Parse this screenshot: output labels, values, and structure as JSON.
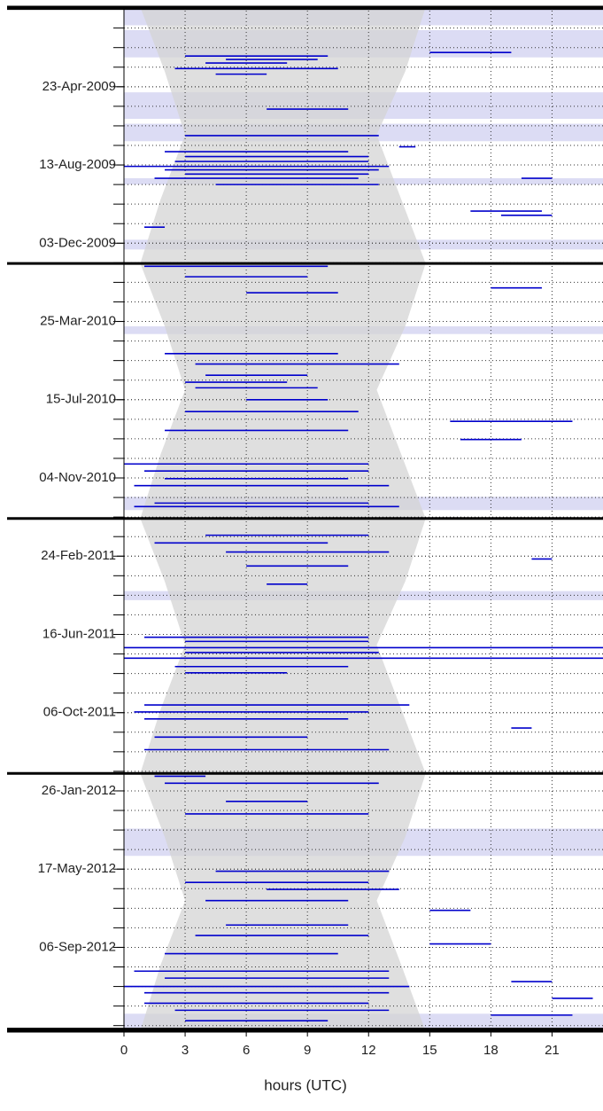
{
  "chart_data": {
    "type": "activity",
    "xlabel": "hours (UTC)",
    "xlim": [
      0,
      23.5
    ],
    "xticks": [
      0,
      3,
      6,
      9,
      12,
      15,
      18,
      21
    ],
    "ylim": [
      "30-Dec-2008",
      "04-Jan-2013"
    ],
    "yticks": [
      "23-Apr-2009",
      "13-Aug-2009",
      "03-Dec-2009",
      "25-Mar-2010",
      "15-Jul-2010",
      "04-Nov-2010",
      "24-Feb-2011",
      "16-Jun-2011",
      "06-Oct-2011",
      "26-Jan-2012",
      "17-May-2012",
      "06-Sep-2012"
    ],
    "grid": true,
    "color": "#0000cc",
    "shade_color": "#d4d4d4",
    "band_color": "#dcdcf4",
    "shading": {
      "dates": [
        "30-Dec-2008",
        "01-Apr-2009",
        "01-Jul-2009",
        "01-Oct-2009",
        "01-Jan-2010",
        "01-Apr-2010",
        "01-Jul-2010",
        "01-Oct-2010",
        "01-Jan-2011",
        "01-Apr-2011",
        "01-Jul-2011",
        "01-Oct-2011",
        "01-Jan-2012",
        "01-Apr-2012",
        "01-Jul-2012",
        "01-Oct-2012",
        "04-Jan-2013"
      ],
      "start": [
        0.8,
        2.0,
        3.0,
        1.8,
        0.8,
        2.0,
        3.0,
        1.8,
        0.8,
        2.0,
        3.0,
        1.8,
        0.8,
        2.0,
        3.0,
        1.8,
        0.8
      ],
      "end": [
        14.8,
        13.8,
        12.4,
        13.6,
        14.8,
        13.8,
        12.4,
        13.6,
        14.8,
        13.8,
        12.4,
        13.6,
        14.8,
        13.8,
        12.4,
        13.6,
        14.8
      ]
    },
    "bands": [
      [
        "30-Dec-2008",
        "25-Jan-2009"
      ],
      [
        "01-Feb-2009",
        "12-Mar-2009"
      ],
      [
        "01-May-2009",
        "08-Jun-2009"
      ],
      [
        "15-Jun-2009",
        "10-Jul-2009"
      ],
      [
        "01-Sep-2009",
        "10-Sep-2009"
      ],
      [
        "28-Nov-2009",
        "12-Dec-2009"
      ],
      [
        "01-Apr-2010",
        "12-Apr-2010"
      ],
      [
        "01-Dec-2010",
        "20-Dec-2010"
      ],
      [
        "15-Apr-2011",
        "28-Apr-2011"
      ],
      [
        "20-Mar-2012",
        "28-Apr-2012"
      ],
      [
        "10-Dec-2012",
        "04-Jan-2013"
      ]
    ],
    "segments": [
      [
        "10-Mar-2009",
        3,
        10
      ],
      [
        "15-Mar-2009",
        5,
        9.5
      ],
      [
        "20-Mar-2009",
        4,
        8
      ],
      [
        "28-Mar-2009",
        2.5,
        10.5
      ],
      [
        "05-Apr-2009",
        4.5,
        7
      ],
      [
        "25-May-2009",
        7,
        11
      ],
      [
        "02-Jul-2009",
        3,
        12.5
      ],
      [
        "25-Jul-2009",
        2,
        11
      ],
      [
        "01-Aug-2009",
        3,
        12
      ],
      [
        "08-Aug-2009",
        2.5,
        12
      ],
      [
        "15-Aug-2009",
        0,
        13
      ],
      [
        "20-Aug-2009",
        2,
        12.5
      ],
      [
        "26-Aug-2009",
        3,
        12
      ],
      [
        "01-Sep-2009",
        1.5,
        11.5
      ],
      [
        "10-Sep-2009",
        4.5,
        12.5
      ],
      [
        "18-Jul-2009",
        13.5,
        14.3
      ],
      [
        "05-Mar-2009",
        15,
        19
      ],
      [
        "01-Sep-2009",
        19.5,
        21
      ],
      [
        "18-Oct-2009",
        17,
        20.5
      ],
      [
        "24-Oct-2009",
        18.5,
        21
      ],
      [
        "10-Nov-2009",
        1,
        2
      ],
      [
        "05-Jan-2010",
        1,
        10
      ],
      [
        "20-Jan-2010",
        3,
        9
      ],
      [
        "12-Feb-2010",
        6,
        10.5
      ],
      [
        "05-Feb-2010",
        18,
        20.5
      ],
      [
        "10-May-2010",
        2,
        10.5
      ],
      [
        "25-May-2010",
        3.5,
        13.5
      ],
      [
        "10-Jun-2010",
        4,
        9
      ],
      [
        "20-Jun-2010",
        3,
        8
      ],
      [
        "28-Jun-2010",
        3.5,
        9.5
      ],
      [
        "15-Jul-2010",
        6,
        10
      ],
      [
        "01-Aug-2010",
        3,
        11.5
      ],
      [
        "15-Aug-2010",
        16,
        22
      ],
      [
        "28-Aug-2010",
        2,
        11
      ],
      [
        "10-Sep-2010",
        16.5,
        19.5
      ],
      [
        "15-Oct-2010",
        0,
        12
      ],
      [
        "25-Oct-2010",
        1,
        12
      ],
      [
        "05-Nov-2010",
        2,
        11
      ],
      [
        "15-Nov-2010",
        0.5,
        13
      ],
      [
        "10-Dec-2010",
        1.5,
        12
      ],
      [
        "15-Dec-2010",
        0.5,
        13.5
      ],
      [
        "25-Jan-2011",
        4,
        12
      ],
      [
        "05-Feb-2011",
        1.5,
        10
      ],
      [
        "18-Feb-2011",
        5,
        13
      ],
      [
        "28-Feb-2011",
        20,
        21
      ],
      [
        "10-Mar-2011",
        6,
        11
      ],
      [
        "05-Apr-2011",
        7,
        9
      ],
      [
        "20-Jun-2011",
        1,
        12
      ],
      [
        "26-Jun-2011",
        3,
        12
      ],
      [
        "05-Jul-2011",
        0,
        23.5
      ],
      [
        "12-Jul-2011",
        3,
        12.5
      ],
      [
        "20-Jul-2011",
        0,
        23.5
      ],
      [
        "01-Aug-2011",
        2.5,
        11
      ],
      [
        "10-Aug-2011",
        3,
        8
      ],
      [
        "25-Sep-2011",
        1,
        14
      ],
      [
        "05-Oct-2011",
        0.5,
        12
      ],
      [
        "15-Oct-2011",
        1,
        11
      ],
      [
        "28-Oct-2011",
        19,
        20
      ],
      [
        "10-Nov-2011",
        1.5,
        9
      ],
      [
        "28-Nov-2011",
        1,
        13
      ],
      [
        "05-Jan-2012",
        1.5,
        4
      ],
      [
        "15-Jan-2012",
        2,
        12.5
      ],
      [
        "10-Feb-2012",
        5,
        9
      ],
      [
        "28-Feb-2012",
        3,
        12
      ],
      [
        "20-May-2012",
        4.5,
        13
      ],
      [
        "05-Jun-2012",
        3,
        12
      ],
      [
        "15-Jun-2012",
        7,
        13.5
      ],
      [
        "01-Jul-2012",
        4,
        11
      ],
      [
        "15-Jul-2012",
        15,
        17
      ],
      [
        "05-Aug-2012",
        5,
        11
      ],
      [
        "20-Aug-2012",
        3.5,
        12
      ],
      [
        "01-Sep-2012",
        15,
        18
      ],
      [
        "15-Sep-2012",
        2,
        10.5
      ],
      [
        "10-Oct-2012",
        0.5,
        13
      ],
      [
        "20-Oct-2012",
        2,
        13
      ],
      [
        "25-Oct-2012",
        19,
        21
      ],
      [
        "01-Nov-2012",
        0,
        14
      ],
      [
        "10-Nov-2012",
        1,
        13
      ],
      [
        "18-Nov-2012",
        21,
        23
      ],
      [
        "25-Nov-2012",
        1,
        12
      ],
      [
        "05-Dec-2012",
        2.5,
        13
      ],
      [
        "12-Dec-2012",
        18,
        22
      ],
      [
        "20-Dec-2012",
        3,
        10
      ]
    ]
  }
}
